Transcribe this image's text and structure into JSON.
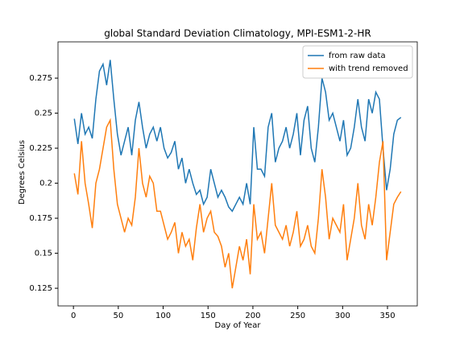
{
  "chart_data": {
    "type": "line",
    "title": "global Standard Deviation Climatology, MPI-ESM1-2-HR",
    "xlabel": "Day of Year",
    "ylabel": "Degrees Celsius",
    "x": [
      1,
      5,
      9,
      13,
      17,
      21,
      25,
      29,
      33,
      37,
      41,
      45,
      49,
      53,
      57,
      61,
      65,
      69,
      73,
      77,
      81,
      85,
      89,
      93,
      97,
      101,
      105,
      109,
      113,
      117,
      121,
      125,
      129,
      133,
      137,
      141,
      145,
      149,
      153,
      157,
      161,
      165,
      169,
      173,
      177,
      181,
      185,
      189,
      193,
      197,
      201,
      205,
      209,
      213,
      217,
      221,
      225,
      229,
      233,
      237,
      241,
      245,
      249,
      253,
      257,
      261,
      265,
      269,
      273,
      277,
      281,
      285,
      289,
      293,
      297,
      301,
      305,
      309,
      313,
      317,
      321,
      325,
      329,
      333,
      337,
      341,
      345,
      349,
      353,
      357,
      361,
      365
    ],
    "series": [
      {
        "name": "from raw data",
        "color": "#1f77b4",
        "values": [
          0.246,
          0.228,
          0.25,
          0.235,
          0.24,
          0.232,
          0.26,
          0.28,
          0.285,
          0.27,
          0.288,
          0.26,
          0.235,
          0.22,
          0.23,
          0.24,
          0.22,
          0.245,
          0.258,
          0.24,
          0.225,
          0.235,
          0.24,
          0.23,
          0.24,
          0.225,
          0.218,
          0.222,
          0.23,
          0.21,
          0.218,
          0.2,
          0.21,
          0.2,
          0.192,
          0.195,
          0.185,
          0.19,
          0.21,
          0.2,
          0.19,
          0.195,
          0.19,
          0.183,
          0.18,
          0.185,
          0.19,
          0.185,
          0.2,
          0.185,
          0.24,
          0.21,
          0.21,
          0.205,
          0.24,
          0.25,
          0.215,
          0.225,
          0.23,
          0.24,
          0.225,
          0.235,
          0.25,
          0.22,
          0.245,
          0.255,
          0.225,
          0.215,
          0.24,
          0.275,
          0.265,
          0.245,
          0.25,
          0.24,
          0.23,
          0.245,
          0.22,
          0.225,
          0.24,
          0.26,
          0.24,
          0.23,
          0.26,
          0.25,
          0.265,
          0.26,
          0.225,
          0.195,
          0.21,
          0.235,
          0.245,
          0.247
        ]
      },
      {
        "name": "with trend removed",
        "color": "#ff7f0e",
        "values": [
          0.207,
          0.192,
          0.23,
          0.2,
          0.185,
          0.168,
          0.2,
          0.21,
          0.225,
          0.24,
          0.245,
          0.21,
          0.185,
          0.175,
          0.165,
          0.175,
          0.17,
          0.19,
          0.225,
          0.2,
          0.19,
          0.205,
          0.2,
          0.18,
          0.18,
          0.17,
          0.16,
          0.165,
          0.172,
          0.15,
          0.165,
          0.155,
          0.16,
          0.145,
          0.168,
          0.185,
          0.165,
          0.175,
          0.18,
          0.165,
          0.162,
          0.155,
          0.14,
          0.15,
          0.125,
          0.14,
          0.155,
          0.145,
          0.16,
          0.135,
          0.185,
          0.16,
          0.165,
          0.15,
          0.175,
          0.2,
          0.17,
          0.165,
          0.16,
          0.17,
          0.155,
          0.165,
          0.18,
          0.155,
          0.16,
          0.17,
          0.155,
          0.15,
          0.175,
          0.21,
          0.19,
          0.16,
          0.175,
          0.17,
          0.165,
          0.185,
          0.145,
          0.16,
          0.175,
          0.2,
          0.17,
          0.16,
          0.185,
          0.17,
          0.19,
          0.215,
          0.23,
          0.145,
          0.165,
          0.185,
          0.19,
          0.194
        ]
      }
    ],
    "xlim": [
      -17.2,
      383.2
    ],
    "xticks": [
      0,
      50,
      100,
      150,
      200,
      250,
      300,
      350
    ],
    "ylim": [
      0.1124,
      0.3009
    ],
    "yticks": [
      0.125,
      0.15,
      0.175,
      0.2,
      0.225,
      0.25,
      0.275
    ],
    "legend": "upper right"
  }
}
